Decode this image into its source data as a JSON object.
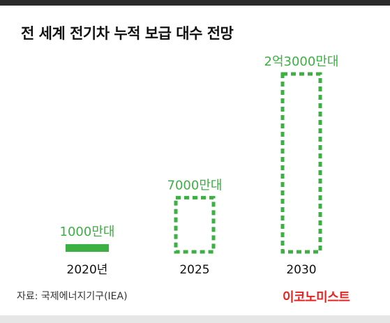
{
  "header": {
    "title": "전 세계 전기차 누적 보급 대수 전망"
  },
  "footer": {
    "source": "자료: 국제에너지기구(IEA)",
    "logo": "이코노미스트"
  },
  "colors": {
    "accent_green": "#3cb043",
    "logo_red": "#e52521",
    "text_dark": "#111111"
  },
  "chart_data": {
    "type": "bar",
    "title": "전 세계 전기차 누적 보급 대수 전망",
    "categories": [
      "2020년",
      "2025",
      "2030"
    ],
    "values": [
      1000,
      7000,
      23000
    ],
    "value_labels": [
      "1000만대",
      "7000만대",
      "2억3000만대"
    ],
    "unit": "만대",
    "styles": [
      "solid",
      "dashed",
      "dashed"
    ],
    "grid": false,
    "legend": "none"
  }
}
